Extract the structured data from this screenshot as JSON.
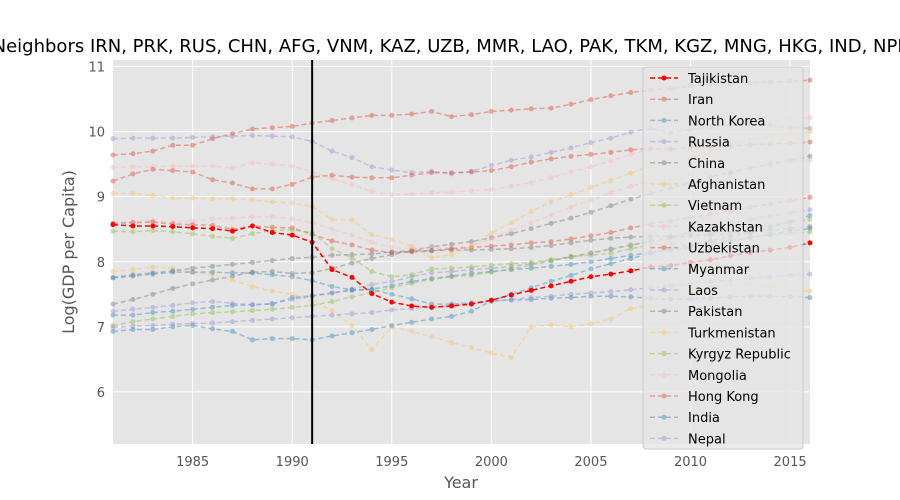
{
  "chart_data": {
    "type": "line",
    "title": "Neighbors IRN, PRK, RUS, CHN, AFG, VNM, KAZ, UZB, MMR, LAO, PAK, TKM, KGZ, MNG, HKG, IND, NPL",
    "xlabel": "Year",
    "ylabel": "Log(GDP per Capita)",
    "xlim": [
      1981,
      2016
    ],
    "ylim": [
      5.2,
      11.1
    ],
    "xticks": [
      1985,
      1990,
      1995,
      2000,
      2005,
      2010,
      2015
    ],
    "yticks": [
      6,
      7,
      8,
      9,
      10,
      11
    ],
    "grid": true,
    "legend_position": "right",
    "vline": 1991,
    "x": [
      1981,
      1982,
      1983,
      1984,
      1985,
      1986,
      1987,
      1988,
      1989,
      1990,
      1991,
      1992,
      1993,
      1994,
      1995,
      1996,
      1997,
      1998,
      1999,
      2000,
      2001,
      2002,
      2003,
      2004,
      2005,
      2006,
      2007,
      2008,
      2009,
      2010,
      2011,
      2012,
      2013,
      2014,
      2015,
      2016
    ],
    "series": [
      {
        "name": "Tajikistan",
        "color": "#ff0000",
        "alpha": 1.0,
        "values": [
          8.57,
          8.55,
          8.55,
          8.54,
          8.52,
          8.51,
          8.47,
          8.55,
          8.45,
          8.41,
          8.3,
          7.88,
          7.76,
          7.51,
          7.38,
          7.32,
          7.3,
          7.32,
          7.35,
          7.41,
          7.49,
          7.56,
          7.63,
          7.7,
          7.77,
          7.81,
          7.86,
          7.92,
          7.94,
          7.99,
          8.03,
          8.09,
          8.14,
          8.18,
          8.22,
          8.29
        ]
      },
      {
        "name": "Iran",
        "color": "#e24a33",
        "alpha": 0.45,
        "values": [
          9.64,
          9.66,
          9.7,
          9.79,
          9.79,
          9.89,
          9.97,
          10.04,
          10.06,
          10.08,
          10.13,
          10.17,
          10.21,
          10.25,
          10.25,
          10.27,
          10.31,
          10.23,
          10.26,
          10.31,
          10.33,
          10.35,
          10.36,
          10.42,
          10.49,
          10.55,
          10.6,
          10.64,
          10.66,
          10.7,
          10.73,
          10.74,
          10.75,
          10.76,
          10.77,
          10.79
        ]
      },
      {
        "name": "North Korea",
        "color": "#348abd",
        "alpha": 0.45,
        "values": [
          7.18,
          7.18,
          7.22,
          7.24,
          7.27,
          7.3,
          7.33,
          7.34,
          7.35,
          7.45,
          7.48,
          7.52,
          7.56,
          7.58,
          7.63,
          7.7,
          7.74,
          7.78,
          7.82,
          7.85,
          7.88,
          7.9,
          7.93,
          7.96,
          8.0,
          8.05,
          8.1,
          8.14,
          8.18,
          8.22,
          8.27,
          8.32,
          8.37,
          8.42,
          8.47,
          8.51
        ]
      },
      {
        "name": "Russia",
        "color": "#988ed5",
        "alpha": 0.45,
        "values": [
          9.89,
          9.9,
          9.9,
          9.9,
          9.91,
          9.92,
          9.93,
          9.94,
          9.93,
          9.92,
          9.85,
          9.7,
          9.6,
          9.46,
          9.41,
          9.37,
          9.39,
          9.35,
          9.39,
          9.48,
          9.56,
          9.61,
          9.68,
          9.75,
          9.83,
          9.9,
          9.99,
          10.05,
          9.98,
          10.03,
          10.07,
          10.1,
          10.11,
          10.1,
          10.06,
          10.05
        ]
      },
      {
        "name": "China",
        "color": "#777777",
        "alpha": 0.45,
        "values": [
          7.35,
          7.42,
          7.5,
          7.59,
          7.66,
          7.72,
          7.78,
          7.84,
          7.85,
          7.82,
          7.83,
          7.9,
          7.98,
          8.05,
          8.11,
          8.17,
          8.23,
          8.27,
          8.31,
          8.37,
          8.43,
          8.51,
          8.59,
          8.67,
          8.76,
          8.86,
          8.96,
          9.05,
          9.13,
          9.22,
          9.3,
          9.37,
          9.44,
          9.5,
          9.56,
          9.62
        ]
      },
      {
        "name": "Afghanistan",
        "color": "#fbc15e",
        "alpha": 0.45,
        "values": [
          7.85,
          7.88,
          7.92,
          7.9,
          7.84,
          7.8,
          7.72,
          7.62,
          7.55,
          7.5,
          7.4,
          7.25,
          7.02,
          6.65,
          7.0,
          6.93,
          6.85,
          6.76,
          6.68,
          6.6,
          6.53,
          7.0,
          7.03,
          7.0,
          7.05,
          7.12,
          7.28,
          7.33,
          7.47,
          7.55,
          7.6,
          7.66,
          7.65,
          7.6,
          7.56,
          7.55
        ]
      },
      {
        "name": "Vietnam",
        "color": "#8eba42",
        "alpha": 0.45,
        "values": [
          7.02,
          7.08,
          7.12,
          7.16,
          7.2,
          7.22,
          7.23,
          7.25,
          7.27,
          7.3,
          7.33,
          7.39,
          7.46,
          7.53,
          7.6,
          7.67,
          7.73,
          7.77,
          7.79,
          7.84,
          7.89,
          7.95,
          8.01,
          8.08,
          8.14,
          8.2,
          8.26,
          8.31,
          8.35,
          8.4,
          8.44,
          8.48,
          8.52,
          8.56,
          8.6,
          8.65
        ]
      },
      {
        "name": "Kazakhstan",
        "color": "#ffb5b8",
        "alpha": 0.45,
        "values": [
          8.6,
          8.62,
          8.63,
          8.61,
          8.62,
          8.66,
          8.67,
          8.69,
          8.69,
          8.66,
          8.6,
          8.5,
          8.41,
          8.3,
          8.22,
          8.2,
          8.22,
          8.21,
          8.24,
          8.35,
          8.48,
          8.6,
          8.72,
          8.84,
          8.95,
          9.06,
          9.16,
          9.23,
          9.25,
          9.32,
          9.38,
          9.43,
          9.5,
          9.53,
          9.55,
          9.56
        ]
      },
      {
        "name": "Uzbekistan",
        "color": "#e24a33",
        "alpha": 0.45,
        "values": [
          8.59,
          8.6,
          8.61,
          8.58,
          8.57,
          8.56,
          8.5,
          8.55,
          8.53,
          8.52,
          8.42,
          8.32,
          8.26,
          8.18,
          8.14,
          8.15,
          8.17,
          8.2,
          8.22,
          8.24,
          8.26,
          8.29,
          8.31,
          8.35,
          8.4,
          8.45,
          8.52,
          8.58,
          8.63,
          8.68,
          8.73,
          8.78,
          8.84,
          8.89,
          8.94,
          8.99
        ]
      },
      {
        "name": "Myanmar",
        "color": "#348abd",
        "alpha": 0.45,
        "values": [
          6.93,
          6.96,
          6.96,
          7.0,
          7.02,
          6.97,
          6.93,
          6.8,
          6.82,
          6.82,
          6.8,
          6.86,
          6.91,
          6.96,
          7.02,
          7.07,
          7.12,
          7.16,
          7.24,
          7.4,
          7.5,
          7.6,
          7.7,
          7.79,
          7.89,
          7.97,
          8.05,
          8.13,
          8.2,
          8.26,
          8.32,
          8.38,
          8.45,
          8.53,
          8.62,
          8.71
        ]
      },
      {
        "name": "Laos",
        "color": "#988ed5",
        "alpha": 0.45,
        "values": [
          7.24,
          7.27,
          7.3,
          7.33,
          7.37,
          7.39,
          7.36,
          7.34,
          7.36,
          7.42,
          7.47,
          7.52,
          7.58,
          7.65,
          7.7,
          7.77,
          7.83,
          7.85,
          7.88,
          7.9,
          7.93,
          7.97,
          8.02,
          8.07,
          8.13,
          8.19,
          8.25,
          8.32,
          8.38,
          8.45,
          8.52,
          8.59,
          8.65,
          8.7,
          8.75,
          8.8
        ]
      },
      {
        "name": "Pakistan",
        "color": "#777777",
        "alpha": 0.45,
        "values": [
          7.76,
          7.8,
          7.83,
          7.86,
          7.9,
          7.93,
          7.96,
          7.99,
          8.02,
          8.05,
          8.07,
          8.1,
          8.11,
          8.12,
          8.15,
          8.17,
          8.17,
          8.18,
          8.18,
          8.19,
          8.2,
          8.22,
          8.25,
          8.29,
          8.33,
          8.36,
          8.38,
          8.39,
          8.39,
          8.4,
          8.41,
          8.43,
          8.46,
          8.48,
          8.51,
          8.54
        ]
      },
      {
        "name": "Turkmenistan",
        "color": "#fbc15e",
        "alpha": 0.45,
        "values": [
          9.05,
          9.05,
          9.02,
          8.98,
          8.98,
          8.97,
          8.97,
          8.95,
          8.92,
          8.9,
          8.85,
          8.65,
          8.64,
          8.42,
          8.34,
          8.24,
          8.06,
          8.11,
          8.23,
          8.44,
          8.6,
          8.77,
          8.92,
          9.03,
          9.14,
          9.25,
          9.36,
          9.47,
          9.52,
          9.6,
          9.71,
          9.8,
          9.87,
          9.93,
          9.97,
          10.0
        ]
      },
      {
        "name": "Kyrgyz Republic",
        "color": "#8eba42",
        "alpha": 0.45,
        "values": [
          8.47,
          8.46,
          8.48,
          8.46,
          8.43,
          8.39,
          8.36,
          8.43,
          8.48,
          8.49,
          8.45,
          8.2,
          8.06,
          7.85,
          7.77,
          7.8,
          7.89,
          7.9,
          7.92,
          7.95,
          7.97,
          7.99,
          8.03,
          8.08,
          8.1,
          8.13,
          8.2,
          8.26,
          8.28,
          8.27,
          8.31,
          8.3,
          8.38,
          8.41,
          8.43,
          8.46
        ]
      },
      {
        "name": "Mongolia",
        "color": "#ffb5b8",
        "alpha": 0.45,
        "values": [
          9.45,
          9.46,
          9.46,
          9.47,
          9.47,
          9.47,
          9.44,
          9.52,
          9.5,
          9.47,
          9.38,
          9.28,
          9.18,
          9.08,
          9.03,
          9.04,
          9.06,
          9.07,
          9.09,
          9.11,
          9.16,
          9.22,
          9.29,
          9.38,
          9.46,
          9.55,
          9.65,
          9.73,
          9.72,
          9.78,
          9.92,
          10.03,
          10.12,
          10.17,
          10.19,
          10.21
        ]
      },
      {
        "name": "Hong Kong",
        "color": "#e24a33",
        "alpha": 0.45,
        "values": [
          9.24,
          9.35,
          9.42,
          9.4,
          9.38,
          9.26,
          9.21,
          9.12,
          9.12,
          9.19,
          9.3,
          9.33,
          9.3,
          9.29,
          9.29,
          9.33,
          9.37,
          9.37,
          9.38,
          9.4,
          9.46,
          9.53,
          9.58,
          9.62,
          9.65,
          9.68,
          9.72,
          9.74,
          9.73,
          9.75,
          9.77,
          9.78,
          9.8,
          9.81,
          9.82,
          9.84
        ]
      },
      {
        "name": "India",
        "color": "#348abd",
        "alpha": 0.45,
        "values": [
          7.75,
          7.78,
          7.81,
          7.84,
          7.84,
          7.84,
          7.83,
          7.83,
          7.8,
          7.77,
          7.71,
          7.62,
          7.57,
          7.57,
          7.5,
          7.43,
          7.35,
          7.35,
          7.37,
          7.4,
          7.41,
          7.42,
          7.44,
          7.45,
          7.47,
          7.47,
          7.46,
          7.44,
          7.42,
          7.43,
          7.44,
          7.46,
          7.47,
          7.47,
          7.46,
          7.45
        ]
      },
      {
        "name": "Nepal",
        "color": "#988ed5",
        "alpha": 0.45,
        "values": [
          6.99,
          7.01,
          7.02,
          7.04,
          7.05,
          7.06,
          7.08,
          7.1,
          7.12,
          7.14,
          7.16,
          7.18,
          7.2,
          7.22,
          7.26,
          7.28,
          7.31,
          7.33,
          7.36,
          7.39,
          7.42,
          7.45,
          7.47,
          7.5,
          7.52,
          7.54,
          7.57,
          7.6,
          7.63,
          7.66,
          7.69,
          7.72,
          7.75,
          7.77,
          7.79,
          7.81
        ]
      }
    ]
  }
}
